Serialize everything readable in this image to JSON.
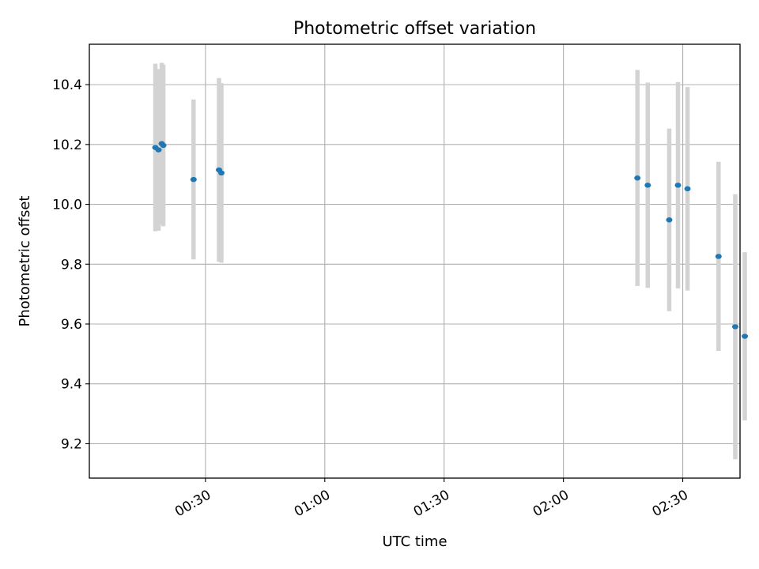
{
  "chart_data": {
    "type": "scatter",
    "title": "Photometric offset variation",
    "xlabel": "UTC time",
    "ylabel": "Photometric offset",
    "x_type": "time",
    "xlim": [
      "00:00:48",
      "02:44:24"
    ],
    "ylim": [
      9.085,
      10.535
    ],
    "grid": true,
    "x_ticks": [
      "00:30",
      "01:00",
      "01:30",
      "02:00",
      "02:30"
    ],
    "y_ticks": [
      9.2,
      9.4,
      9.6,
      9.8,
      10.0,
      10.2,
      10.4
    ],
    "point_color": "#1f77b4",
    "errorbar_color": "#d3d3d3",
    "points": [
      {
        "time": "00:17:24",
        "y": 10.19,
        "yerr": 0.28
      },
      {
        "time": "00:18:12",
        "y": 10.182,
        "yerr": 0.27
      },
      {
        "time": "00:19:00",
        "y": 10.203,
        "yerr": 0.27
      },
      {
        "time": "00:19:24",
        "y": 10.197,
        "yerr": 0.27
      },
      {
        "time": "00:27:00",
        "y": 10.083,
        "yerr": 0.267
      },
      {
        "time": "00:33:24",
        "y": 10.115,
        "yerr": 0.307
      },
      {
        "time": "00:34:00",
        "y": 10.105,
        "yerr": 0.3
      },
      {
        "time": "02:18:36",
        "y": 10.088,
        "yerr": 0.361
      },
      {
        "time": "02:21:12",
        "y": 10.064,
        "yerr": 0.343
      },
      {
        "time": "02:26:36",
        "y": 9.948,
        "yerr": 0.305
      },
      {
        "time": "02:28:48",
        "y": 10.064,
        "yerr": 0.345
      },
      {
        "time": "02:31:12",
        "y": 10.052,
        "yerr": 0.34
      },
      {
        "time": "02:39:00",
        "y": 9.826,
        "yerr": 0.316
      },
      {
        "time": "02:43:12",
        "y": 9.591,
        "yerr": 0.443
      },
      {
        "time": "02:45:36",
        "y": 9.559,
        "yerr": 0.281
      }
    ]
  }
}
